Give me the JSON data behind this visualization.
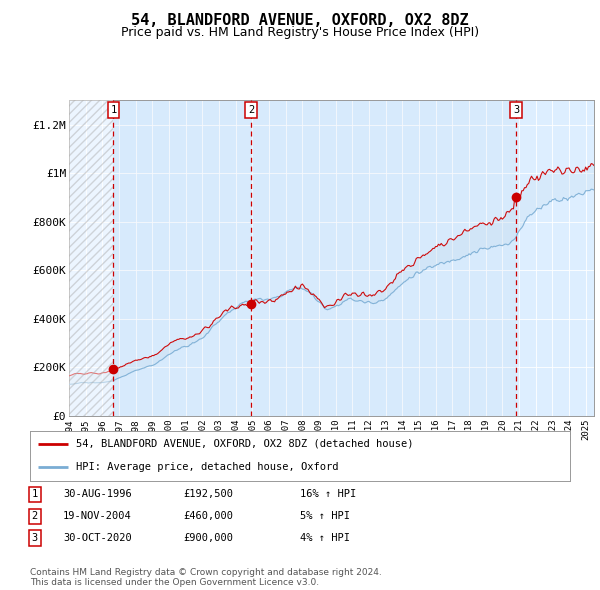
{
  "title": "54, BLANDFORD AVENUE, OXFORD, OX2 8DZ",
  "subtitle": "Price paid vs. HM Land Registry's House Price Index (HPI)",
  "title_fontsize": 11,
  "subtitle_fontsize": 9,
  "sale_year_floats": [
    1996.667,
    2004.917,
    2020.833
  ],
  "sale_prices": [
    192500,
    460000,
    900000
  ],
  "sale_labels": [
    "1",
    "2",
    "3"
  ],
  "legend_entries": [
    "54, BLANDFORD AVENUE, OXFORD, OX2 8DZ (detached house)",
    "HPI: Average price, detached house, Oxford"
  ],
  "price_line_color": "#cc0000",
  "hpi_line_color": "#7aadd4",
  "sale_dot_color": "#cc0000",
  "dashed_line_color": "#cc0000",
  "background_color": "#ffffff",
  "plot_bg_color": "#ddeeff",
  "band_color": "#c8dff0",
  "hatch_fg": "#bbbbbb",
  "ylim": [
    0,
    1300000
  ],
  "yticks": [
    0,
    200000,
    400000,
    600000,
    800000,
    1000000,
    1200000
  ],
  "ytick_labels": [
    "£0",
    "£200K",
    "£400K",
    "£600K",
    "£800K",
    "£1M",
    "£1.2M"
  ],
  "xlim_start": 1994.0,
  "xlim_end": 2025.5,
  "footer_text": "Contains HM Land Registry data © Crown copyright and database right 2024.\nThis data is licensed under the Open Government Licence v3.0.",
  "ann_labels": [
    "1",
    "2",
    "3"
  ],
  "ann_dates": [
    "30-AUG-1996",
    "19-NOV-2004",
    "30-OCT-2020"
  ],
  "ann_prices": [
    "£192,500",
    "£460,000",
    "£900,000"
  ],
  "ann_hpi": [
    "16% ↑ HPI",
    "5% ↑ HPI",
    "4% ↑ HPI"
  ]
}
